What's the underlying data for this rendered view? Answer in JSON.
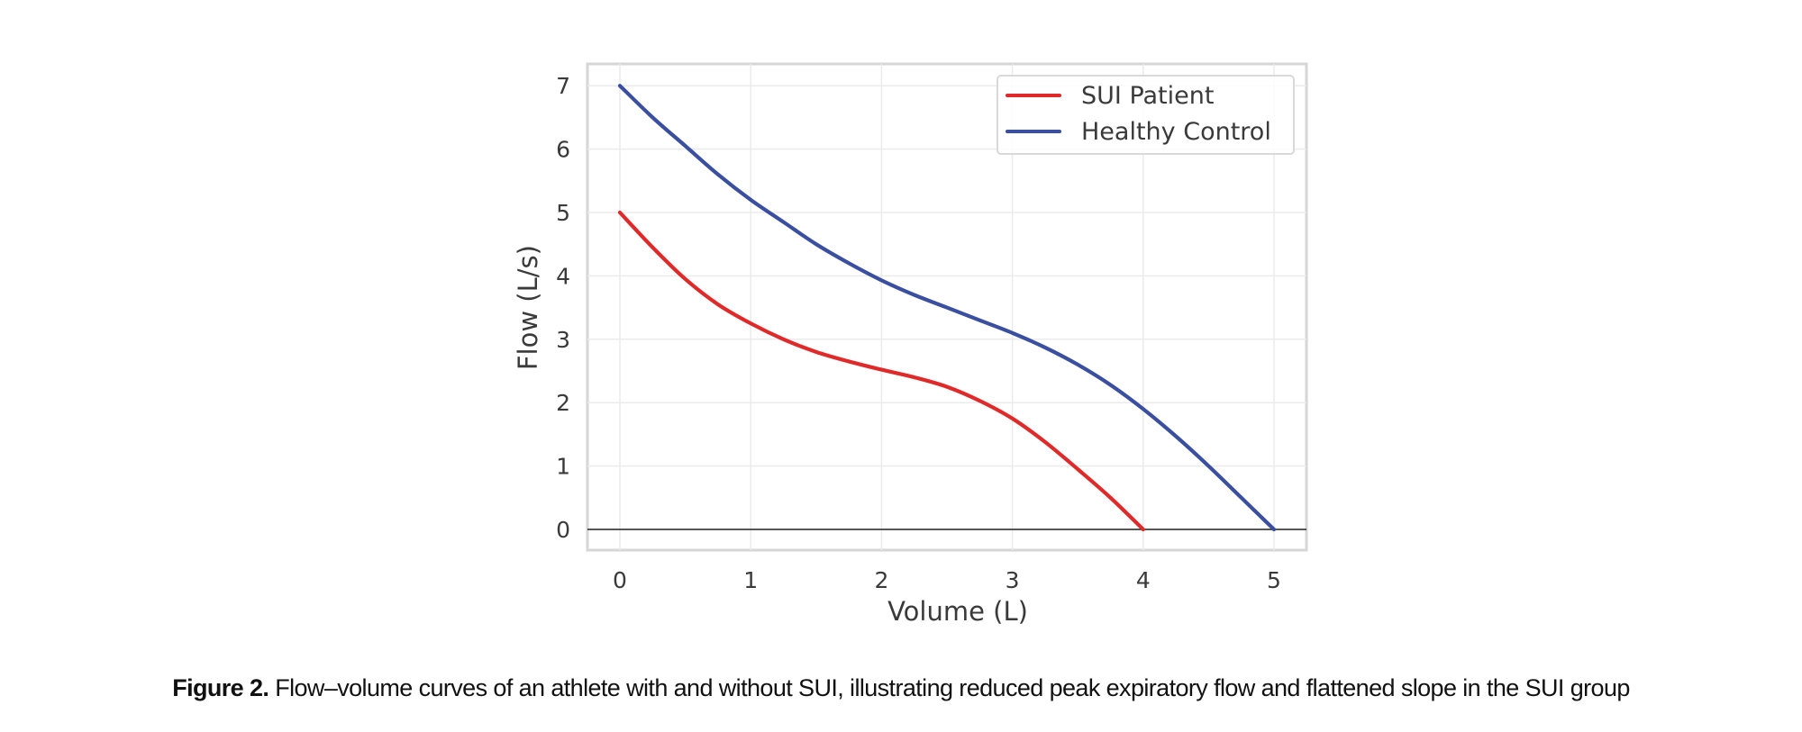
{
  "chart_data": {
    "type": "line",
    "title": "",
    "xlabel": "Volume (L)",
    "ylabel": "Flow (L/s)",
    "xlim": [
      -0.25,
      5.25
    ],
    "ylim": [
      -0.35,
      7.35
    ],
    "xticks": [
      0,
      1,
      2,
      3,
      4,
      5
    ],
    "yticks": [
      0,
      1,
      2,
      3,
      4,
      5,
      6,
      7
    ],
    "grid": true,
    "zero_line": true,
    "legend_position": "top-right",
    "series": [
      {
        "name": "SUI Patient",
        "color": "#e02a2a",
        "x": [
          0,
          0.25,
          0.5,
          0.75,
          1.0,
          1.25,
          1.5,
          1.75,
          2.0,
          2.25,
          2.5,
          2.75,
          3.0,
          3.25,
          3.5,
          3.75,
          4.0
        ],
        "y": [
          5.0,
          4.45,
          3.95,
          3.55,
          3.25,
          3.0,
          2.8,
          2.65,
          2.52,
          2.4,
          2.25,
          2.03,
          1.75,
          1.38,
          0.95,
          0.5,
          0.0
        ]
      },
      {
        "name": "Healthy Control",
        "color": "#3a4fa0",
        "x": [
          0,
          0.25,
          0.5,
          0.75,
          1.0,
          1.25,
          1.5,
          1.75,
          2.0,
          2.25,
          2.5,
          2.75,
          3.0,
          3.25,
          3.5,
          3.75,
          4.0,
          4.25,
          4.5,
          4.75,
          5.0
        ],
        "y": [
          7.0,
          6.5,
          6.05,
          5.6,
          5.2,
          4.85,
          4.5,
          4.2,
          3.93,
          3.7,
          3.5,
          3.3,
          3.1,
          2.87,
          2.6,
          2.28,
          1.9,
          1.47,
          1.0,
          0.5,
          0.0
        ]
      }
    ]
  },
  "caption": {
    "label": "Figure 2.",
    "text": " Flow–volume curves of an athlete with and without SUI, illustrating reduced peak expiratory flow and flattened slope in the SUI group"
  }
}
